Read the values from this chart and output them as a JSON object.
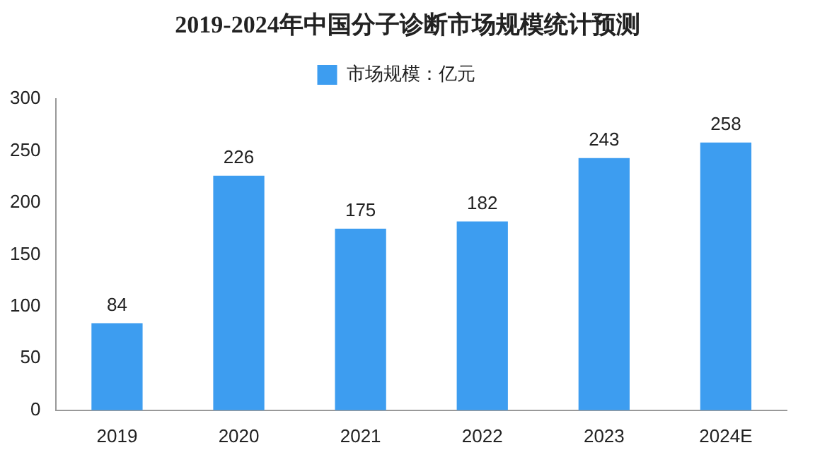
{
  "chart_data": {
    "type": "bar",
    "title": "2019-2024年中国分子诊断市场规模统计预测",
    "categories": [
      "2019",
      "2020",
      "2021",
      "2022",
      "2023",
      "2024E"
    ],
    "series": [
      {
        "name": "市场规模：亿元",
        "color": "#3d9df0",
        "values": [
          84,
          226,
          175,
          182,
          243,
          258
        ]
      }
    ],
    "ylim": [
      0,
      300
    ],
    "yticks": [
      0,
      50,
      100,
      150,
      200,
      250,
      300
    ],
    "grid": false,
    "legend": "top",
    "data_labels": true
  }
}
